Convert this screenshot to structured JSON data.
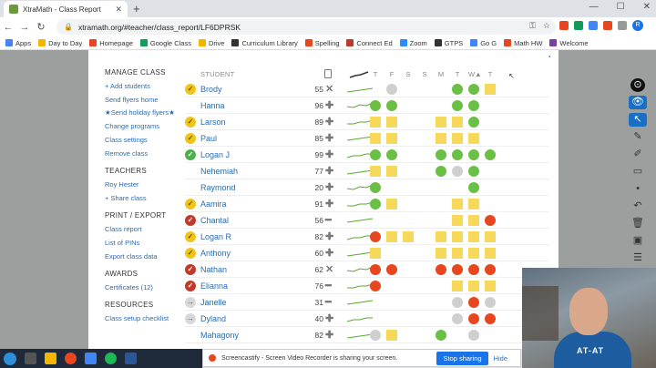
{
  "browser": {
    "tab_title": "XtraMath - Class Report",
    "tab_close": "✕",
    "newtab_glyph": "+",
    "url": "xtramath.org/#teacher/class_report/LF6DPRSK",
    "profile_initial": "R",
    "bookmarks": [
      {
        "label": "Apps",
        "color": "#4285f4"
      },
      {
        "label": "Day to Day",
        "color": "#f4b400"
      },
      {
        "label": "Homepage",
        "color": "#e8461e"
      },
      {
        "label": "Google Class",
        "color": "#0f9d58"
      },
      {
        "label": "Drive",
        "color": "#f4b400"
      },
      {
        "label": "Curriculum Library",
        "color": "#333333"
      },
      {
        "label": "Spelling",
        "color": "#e8461e"
      },
      {
        "label": "Connect Ed",
        "color": "#c0392b"
      },
      {
        "label": "Zoom",
        "color": "#2d8cff"
      },
      {
        "label": "GTPS",
        "color": "#333333"
      },
      {
        "label": "Go G",
        "color": "#4285f4"
      },
      {
        "label": "Math HW",
        "color": "#e8461e"
      },
      {
        "label": "Welcome",
        "color": "#7b3fa0"
      }
    ]
  },
  "sidebar": {
    "manage_heading": "MANAGE CLASS",
    "manage_links": [
      "+ Add students",
      "Send flyers home",
      "★Send holiday flyers★",
      "Change programs",
      "Class settings",
      "Remove class"
    ],
    "teachers_heading": "TEACHERS",
    "teachers_links": [
      "Roy Hester",
      "+ Share class"
    ],
    "print_heading": "PRINT / EXPORT",
    "print_links": [
      "Class report",
      "List of PINs",
      "Export class data"
    ],
    "awards_heading": "AWARDS",
    "awards_links": [
      "Certificates (12)"
    ],
    "resources_heading": "RESOURCES",
    "resources_links": [
      "Class setup checklist"
    ]
  },
  "table": {
    "student_header": "STUDENT",
    "days": [
      "T",
      "F",
      "S",
      "S",
      "M",
      "T",
      "W▲",
      "T"
    ],
    "students": [
      {
        "status": "check",
        "name": "Brody",
        "score": "55",
        "op": "✕",
        "cells": [
          "",
          "gr",
          "",
          "",
          "",
          "g",
          "g",
          "y"
        ]
      },
      {
        "status": "none",
        "name": "Hanna",
        "score": "96",
        "op": "✚",
        "cells": [
          "g",
          "g",
          "",
          "",
          "",
          "g",
          "g",
          ""
        ]
      },
      {
        "status": "check",
        "name": "Larson",
        "score": "89",
        "op": "✚",
        "cells": [
          "y",
          "y",
          "",
          "",
          "y",
          "y",
          "g",
          ""
        ]
      },
      {
        "status": "check",
        "name": "Paul",
        "score": "85",
        "op": "✚",
        "cells": [
          "y",
          "y",
          "",
          "",
          "y",
          "y",
          "y",
          ""
        ]
      },
      {
        "status": "gcheck",
        "name": "Logan J",
        "score": "99",
        "op": "✚",
        "cells": [
          "g",
          "g",
          "",
          "",
          "g",
          "g",
          "g",
          "g"
        ]
      },
      {
        "status": "none",
        "name": "Nehemiah",
        "score": "77",
        "op": "✚",
        "cells": [
          "y",
          "y",
          "",
          "",
          "g",
          "gr",
          "g",
          ""
        ]
      },
      {
        "status": "none",
        "name": "Raymond",
        "score": "20",
        "op": "✚",
        "cells": [
          "g",
          "",
          "",
          "",
          "",
          "",
          "g",
          ""
        ]
      },
      {
        "status": "check",
        "name": "Aamira",
        "score": "91",
        "op": "✚",
        "cells": [
          "g",
          "y",
          "",
          "",
          "",
          "y",
          "y",
          ""
        ]
      },
      {
        "status": "x",
        "name": "Chantal",
        "score": "56",
        "op": "━",
        "cells": [
          "",
          "",
          "",
          "",
          "",
          "y",
          "y",
          "r"
        ]
      },
      {
        "status": "check",
        "name": "Logan R",
        "score": "82",
        "op": "✚",
        "cells": [
          "r",
          "y",
          "y",
          "",
          "y",
          "y",
          "y",
          "y"
        ]
      },
      {
        "status": "check",
        "name": "Anthony",
        "score": "60",
        "op": "✚",
        "cells": [
          "y",
          "",
          "",
          "",
          "y",
          "y",
          "y",
          "y"
        ]
      },
      {
        "status": "x",
        "name": "Nathan",
        "score": "62",
        "op": "✕",
        "cells": [
          "r",
          "r",
          "",
          "",
          "r",
          "r",
          "r",
          "r"
        ]
      },
      {
        "status": "x",
        "name": "Elianna",
        "score": "76",
        "op": "━",
        "cells": [
          "r",
          "",
          "",
          "",
          "",
          "y",
          "y",
          "y"
        ]
      },
      {
        "status": "arrow",
        "name": "Janelle",
        "score": "31",
        "op": "━",
        "cells": [
          "",
          "",
          "",
          "",
          "",
          "gr",
          "r",
          "gr"
        ]
      },
      {
        "status": "arrow",
        "name": "Dyland",
        "score": "40",
        "op": "✚",
        "cells": [
          "",
          "",
          "",
          "",
          "",
          "gr",
          "r",
          "r"
        ]
      },
      {
        "status": "none",
        "name": "Mahagony",
        "score": "82",
        "op": "✚",
        "cells": [
          "gr",
          "y",
          "",
          "",
          "g",
          "",
          "gr",
          ""
        ]
      }
    ]
  },
  "screencastify": {
    "message": "Screencastify - Screen Video Recorder is sharing your screen.",
    "stop": "Stop sharing",
    "hide": "Hide"
  },
  "webcam": {
    "shirt_text": "AT-AT"
  },
  "colors": {
    "accent_link": "#2b6cb0",
    "green": "#6ac045",
    "red": "#e8461e",
    "yellow": "#f6d85b"
  }
}
